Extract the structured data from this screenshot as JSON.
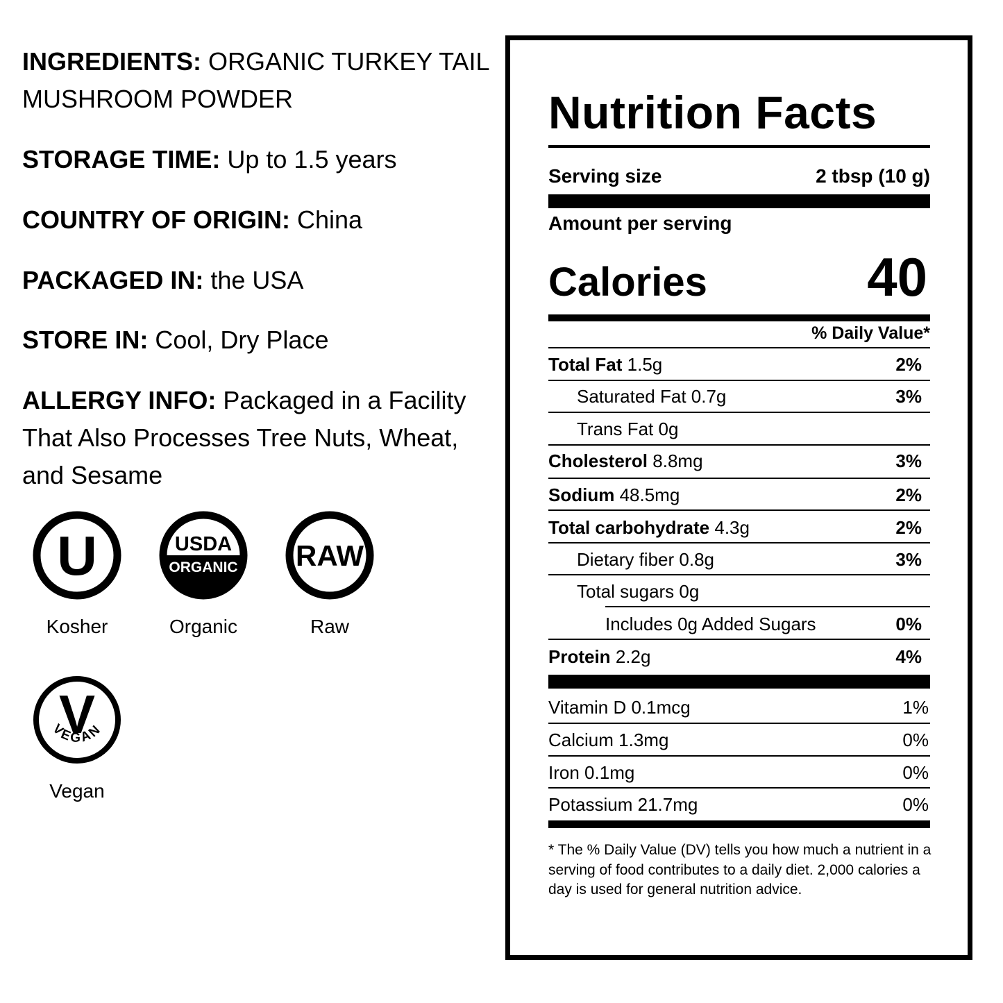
{
  "info": {
    "ingredients_label": "INGREDIENTS:",
    "ingredients_value": "ORGANIC TURKEY TAIL MUSHROOM POWDER",
    "storage_label": "STORAGE TIME:",
    "storage_value": "Up to 1.5 years",
    "origin_label": "COUNTRY OF ORIGIN:",
    "origin_value": "China",
    "packaged_label": "PACKAGED IN:",
    "packaged_value": "the USA",
    "store_label": "STORE IN:",
    "store_value": "Cool, Dry Place",
    "allergy_label": "ALLERGY INFO:",
    "allergy_value": "Packaged in a Facility That Also Processes Tree Nuts, Wheat, and Sesame"
  },
  "badges": {
    "kosher": {
      "glyph": "U",
      "label": "Kosher",
      "icon": "kosher-u-icon"
    },
    "organic": {
      "line1": "USDA",
      "line2": "ORGANIC",
      "label": "Organic",
      "icon": "usda-organic-icon"
    },
    "raw": {
      "glyph": "RAW",
      "label": "Raw",
      "icon": "raw-icon"
    },
    "vegan": {
      "glyph": "V",
      "ring": "VEGAN",
      "label": "Vegan",
      "icon": "vegan-icon"
    }
  },
  "nutrition": {
    "title": "Nutrition Facts",
    "serving_size_label": "Serving size",
    "serving_size_value": "2 tbsp (10 g)",
    "amount_per_serving": "Amount per serving",
    "calories_label": "Calories",
    "calories_value": "40",
    "dv_header": "% Daily Value*",
    "rows": [
      {
        "name": "Total Fat",
        "amount": "1.5g",
        "dv": "2%"
      },
      {
        "name": "Saturated Fat",
        "amount": "0.7g",
        "dv": "3%"
      },
      {
        "name": "Trans Fat",
        "amount": "0g",
        "dv": ""
      },
      {
        "name": "Cholesterol",
        "amount": "8.8mg",
        "dv": "3%"
      },
      {
        "name": "Sodium",
        "amount": "48.5mg",
        "dv": "2%"
      },
      {
        "name": "Total carbohydrate",
        "amount": "4.3g",
        "dv": "2%"
      },
      {
        "name": "Dietary fiber",
        "amount": "0.8g",
        "dv": "3%"
      },
      {
        "name": "Total sugars",
        "amount": "0g",
        "dv": ""
      },
      {
        "name": "Includes 0g Added Sugars",
        "amount": "",
        "dv": "0%"
      },
      {
        "name": "Protein",
        "amount": "2.2g",
        "dv": "4%"
      }
    ],
    "vitamins": [
      {
        "name": "Vitamin D",
        "amount": "0.1mcg",
        "dv": "1%"
      },
      {
        "name": "Calcium",
        "amount": "1.3mg",
        "dv": "0%"
      },
      {
        "name": "Iron",
        "amount": "0.1mg",
        "dv": "0%"
      },
      {
        "name": "Potassium",
        "amount": "21.7mg",
        "dv": "0%"
      }
    ],
    "footnote": "* The % Daily Value (DV) tells you how much a nutrient in a serving of food contributes to a daily diet. 2,000 calories a day is used for general nutrition advice."
  }
}
